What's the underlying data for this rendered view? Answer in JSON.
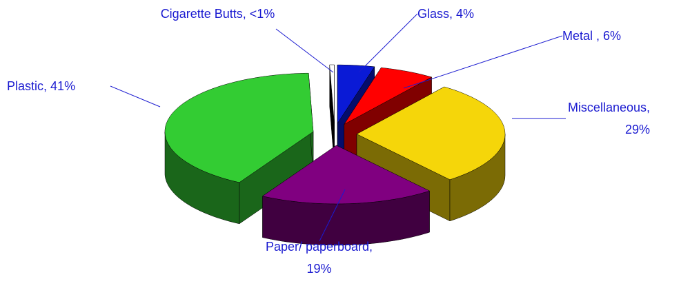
{
  "chart_data": {
    "type": "pie3d",
    "categories": [
      "Glass,",
      "Metal ,",
      "Miscellaneous,",
      "Paper/ paperboard,",
      "Plastic,",
      "Cigarette Butts,"
    ],
    "values": [
      4,
      6,
      29,
      19,
      41,
      0.5
    ],
    "value_labels": [
      "4%",
      "6%",
      "29%",
      "19%",
      "41%",
      "<1%"
    ],
    "colors": [
      "#0a1ad6",
      "#ff0000",
      "#f5d60a",
      "#800080",
      "#33cc33",
      "#ffffff"
    ]
  }
}
